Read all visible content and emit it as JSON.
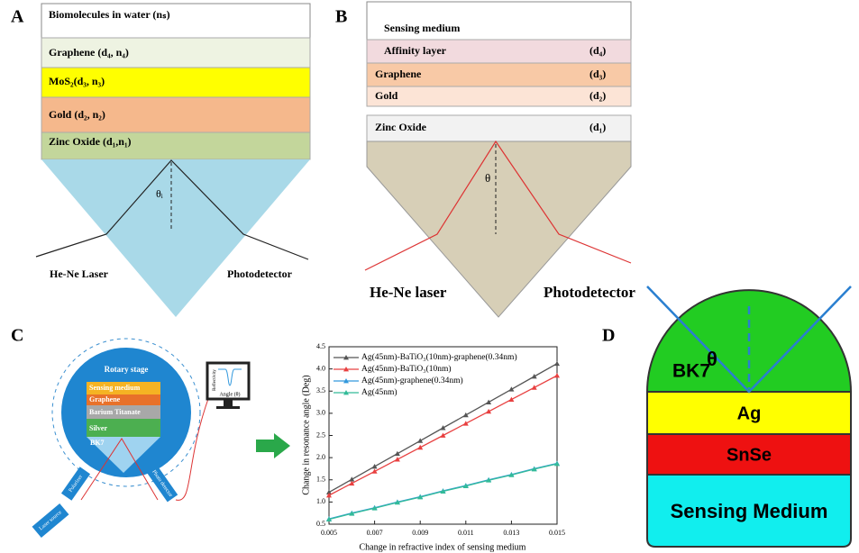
{
  "panel_a": {
    "label": "A",
    "layers": [
      "Biomolecules in water (nₛ)",
      "Graphene (d₄, n₄)",
      "MoS₂(d₃, n₃)",
      "Gold (d₂, n₂)",
      "Zinc Oxide (d₁,n₁)"
    ],
    "angle": "θᵢ",
    "source": "He-Ne Laser",
    "detector": "Photodetector"
  },
  "panel_b": {
    "label": "B",
    "top": "Sensing medium",
    "layers": [
      {
        "name": "Affinity layer",
        "thickness": "(d₄)"
      },
      {
        "name": "Graphene",
        "thickness": "(d₃)"
      },
      {
        "name": "Gold",
        "thickness": "(d₂)"
      },
      {
        "name": "Zinc Oxide",
        "thickness": "(d₁)"
      }
    ],
    "angle": "θ",
    "source": "He-Ne laser",
    "detector": "Photodetector"
  },
  "panel_c": {
    "label": "C",
    "stage": "Rotary stage",
    "layers": [
      "Sensing medium",
      "Graphene",
      "Barium Titanate",
      "Silver"
    ],
    "prism": "BK7",
    "polarizer": "Polarizer",
    "laser": "Laser source",
    "detector": "Photo detector",
    "screen_y": "Reflectivity",
    "screen_x": "Angle (θ)"
  },
  "chart_data": {
    "type": "line",
    "xlabel": "Change in refractive index of sensing medium",
    "ylabel": "Change in resonance angle (Deg)",
    "x": [
      0.005,
      0.006,
      0.007,
      0.008,
      0.009,
      0.01,
      0.011,
      0.012,
      0.013,
      0.014,
      0.015
    ],
    "xlim": [
      0.005,
      0.015
    ],
    "xticks": [
      0.005,
      0.007,
      0.009,
      0.011,
      0.013,
      0.015
    ],
    "ylim": [
      0.5,
      4.5
    ],
    "yticks": [
      0.5,
      {
        "value": 1,
        "label": "1.0"
      },
      1.5,
      {
        "value": 2,
        "label": "2.0"
      },
      2.5,
      {
        "value": 3,
        "label": "3.0"
      },
      3.5,
      {
        "value": 4,
        "label": "4.0"
      },
      4.5
    ],
    "series": [
      {
        "name": "Ag(45nm)-BaTiO₃(10nm)-graphene(0.34nm)",
        "color": "#555555",
        "values": [
          1.22,
          1.51,
          1.8,
          2.09,
          2.38,
          2.67,
          2.96,
          3.25,
          3.54,
          3.83,
          4.12
        ]
      },
      {
        "name": "Ag(45nm)-BaTiO₃(10nm)",
        "color": "#e84040",
        "values": [
          1.15,
          1.42,
          1.69,
          1.96,
          2.23,
          2.5,
          2.77,
          3.04,
          3.31,
          3.58,
          3.85
        ]
      },
      {
        "name": "Ag(45nm)-graphene(0.34nm)",
        "color": "#3399dd",
        "values": [
          0.62,
          0.75,
          0.87,
          1.0,
          1.12,
          1.25,
          1.37,
          1.5,
          1.62,
          1.75,
          1.87
        ]
      },
      {
        "name": "Ag(45nm)",
        "color": "#33bb99",
        "values": [
          0.61,
          0.74,
          0.86,
          0.99,
          1.11,
          1.24,
          1.36,
          1.49,
          1.61,
          1.74,
          1.86
        ]
      }
    ]
  },
  "panel_d": {
    "label": "D",
    "prism": "BK7",
    "angle": "θ",
    "layers": [
      "Ag",
      "SnSe",
      "Sensing Medium"
    ]
  }
}
